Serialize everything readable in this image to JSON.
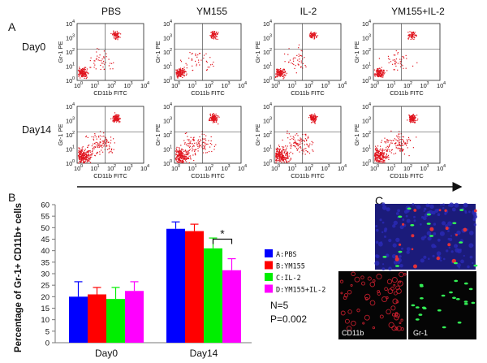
{
  "panels": {
    "a_label": "A",
    "b_label": "B",
    "c_label": "C"
  },
  "flow": {
    "columns": [
      "PBS",
      "YM155",
      "IL-2",
      "YM155+IL-2"
    ],
    "rows": [
      "Day0",
      "Day14"
    ],
    "x_axis_label": "CD11b FITC",
    "y_axis_label": "Gr-1 PE",
    "tick_base": "10",
    "tick_exponents": [
      "0",
      "1",
      "2",
      "3",
      "4"
    ],
    "dot_color": "#e0141e"
  },
  "chart_data": {
    "type": "bar",
    "categories": [
      "Day0",
      "Day14"
    ],
    "ylabel": "Percentage of Gr-1+ CD11b+ cells",
    "ylim": [
      0,
      60
    ],
    "yticks": [
      0,
      5,
      10,
      15,
      20,
      25,
      30,
      35,
      40,
      45,
      50,
      55,
      60
    ],
    "series": [
      {
        "name": "A:PBS",
        "color": "#0000ff",
        "values": [
          20,
          49.5
        ],
        "errors": [
          6.5,
          3
        ]
      },
      {
        "name": "B:YM155",
        "color": "#ff0000",
        "values": [
          21,
          48.5
        ],
        "errors": [
          3,
          3
        ]
      },
      {
        "name": "C:IL-2",
        "color": "#00ee00",
        "values": [
          19,
          41
        ],
        "errors": [
          5,
          4.5
        ]
      },
      {
        "name": "D:YM155+IL-2",
        "color": "#ff00ff",
        "values": [
          22.5,
          31.5
        ],
        "errors": [
          4,
          5
        ]
      }
    ],
    "significance": "*",
    "n_text": "N=5",
    "p_text": "P=0.002"
  },
  "micrographs": {
    "labels": [
      "CD11b",
      "Gr-1"
    ]
  }
}
